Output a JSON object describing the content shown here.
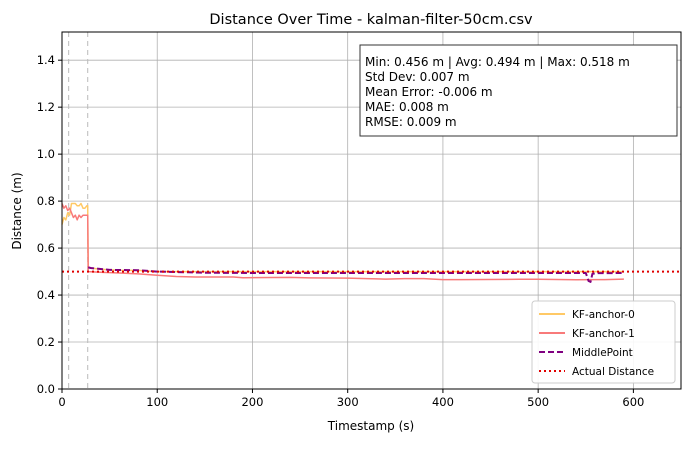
{
  "chart_data": {
    "type": "line",
    "title": "Distance Over Time - kalman-filter-50cm.csv",
    "xlabel": "Timestamp (s)",
    "ylabel": "Distance (m)",
    "xlim": [
      0,
      650
    ],
    "ylim": [
      0,
      1.52
    ],
    "xticks": [
      0,
      100,
      200,
      300,
      400,
      500,
      600
    ],
    "yticks": [
      0.0,
      0.2,
      0.4,
      0.6,
      0.8,
      1.0,
      1.2,
      1.4
    ],
    "xtick_labels": [
      "0",
      "100",
      "200",
      "300",
      "400",
      "500",
      "600"
    ],
    "ytick_labels": [
      "0.0",
      "0.2",
      "0.4",
      "0.6",
      "0.8",
      "1.0",
      "1.2",
      "1.4"
    ],
    "grid": true,
    "legend_position": "bottom-right",
    "vertical_markers": [
      7,
      27
    ],
    "stats_lines": [
      "Min: 0.456 m | Avg: 0.494 m | Max: 0.518 m",
      "Std Dev: 0.007 m",
      "Mean Error: -0.006 m",
      "MAE: 0.008 m",
      "RMSE: 0.009 m"
    ],
    "series": [
      {
        "name": "KF-anchor-0",
        "color": "#ffc966",
        "style": "solid",
        "x": [
          0,
          2,
          4,
          6,
          8,
          10,
          12,
          14,
          16,
          18,
          20,
          22,
          24,
          26,
          27,
          27.5,
          30,
          40,
          60,
          80,
          100,
          150,
          200,
          300,
          400,
          450,
          500,
          550,
          590
        ],
        "y": [
          0.7,
          0.73,
          0.72,
          0.75,
          0.74,
          0.79,
          0.79,
          0.79,
          0.78,
          0.78,
          0.79,
          0.77,
          0.77,
          0.78,
          0.78,
          0.52,
          0.515,
          0.51,
          0.505,
          0.505,
          0.5,
          0.5,
          0.5,
          0.5,
          0.5,
          0.5,
          0.5,
          0.5,
          0.5
        ]
      },
      {
        "name": "KF-anchor-1",
        "color": "#f87a7a",
        "style": "solid",
        "x": [
          0,
          2,
          4,
          6,
          8,
          10,
          12,
          14,
          16,
          18,
          20,
          22,
          24,
          26,
          27,
          27.5,
          40,
          60,
          80,
          100,
          120,
          140,
          180,
          190,
          240,
          260,
          300,
          320,
          340,
          360,
          380,
          400,
          420,
          480,
          500,
          540,
          560,
          570,
          590
        ],
        "y": [
          0.79,
          0.77,
          0.78,
          0.76,
          0.77,
          0.75,
          0.73,
          0.74,
          0.72,
          0.74,
          0.73,
          0.74,
          0.74,
          0.74,
          0.74,
          0.5,
          0.497,
          0.494,
          0.49,
          0.484,
          0.479,
          0.477,
          0.477,
          0.474,
          0.475,
          0.473,
          0.472,
          0.47,
          0.468,
          0.47,
          0.47,
          0.466,
          0.466,
          0.467,
          0.467,
          0.465,
          0.466,
          0.466,
          0.468
        ]
      },
      {
        "name": "MiddlePoint",
        "color": "#800080",
        "style": "dashed",
        "x": [
          27.5,
          30,
          50,
          80,
          100,
          150,
          200,
          300,
          400,
          500,
          550,
          553,
          555,
          557,
          560,
          590
        ],
        "y": [
          0.518,
          0.515,
          0.507,
          0.506,
          0.5,
          0.495,
          0.494,
          0.494,
          0.494,
          0.494,
          0.494,
          0.46,
          0.456,
          0.49,
          0.493,
          0.494
        ]
      },
      {
        "name": "Actual Distance",
        "color": "#e00000",
        "style": "dotted",
        "x": [
          0,
          650
        ],
        "y": [
          0.5,
          0.5
        ]
      }
    ]
  }
}
